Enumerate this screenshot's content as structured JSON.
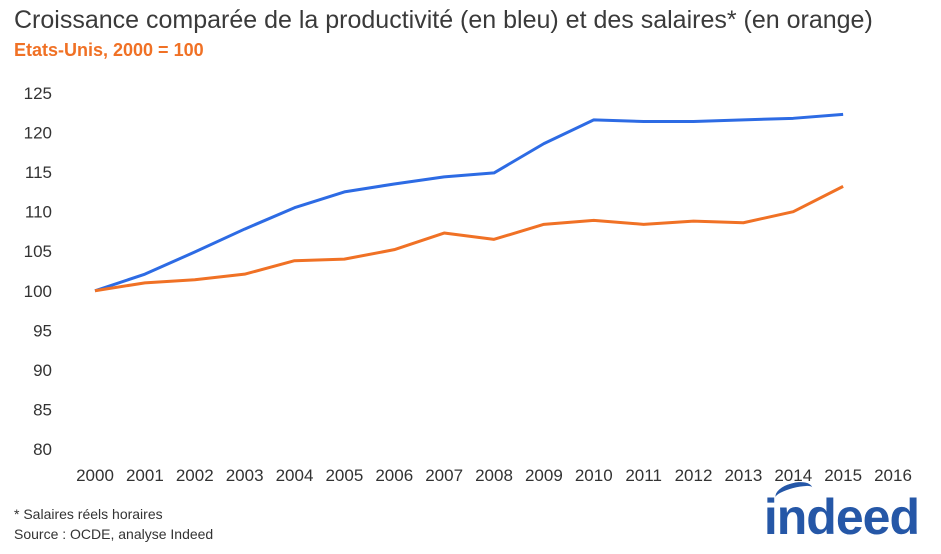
{
  "chart_data": {
    "type": "line",
    "title": "Croissance comparée de la productivité (en bleu) et des salaires* (en orange)",
    "subtitle": "Etats-Unis, 2000 = 100",
    "x": [
      2000,
      2001,
      2002,
      2003,
      2004,
      2005,
      2006,
      2007,
      2008,
      2009,
      2010,
      2011,
      2012,
      2013,
      2014,
      2015
    ],
    "x_ticks": [
      "2000",
      "2001",
      "2002",
      "2003",
      "2004",
      "2005",
      "2006",
      "2007",
      "2008",
      "2009",
      "2010",
      "2011",
      "2012",
      "2013",
      "2014",
      "2015",
      "2016"
    ],
    "y_ticks": [
      "80",
      "85",
      "90",
      "95",
      "100",
      "105",
      "110",
      "115",
      "120",
      "125"
    ],
    "xlim": [
      2000,
      2016
    ],
    "ylim": [
      80,
      125
    ],
    "grid": false,
    "series": [
      {
        "color": "#2d6be4",
        "values": [
          100,
          102.1,
          104.9,
          107.8,
          110.5,
          112.5,
          113.5,
          114.4,
          114.9,
          118.6,
          121.6,
          121.4,
          121.4,
          121.6,
          121.8,
          122.3
        ]
      },
      {
        "color": "#f07125",
        "values": [
          100,
          101.0,
          101.4,
          102.1,
          103.8,
          104.0,
          105.2,
          107.3,
          106.5,
          108.4,
          108.9,
          108.4,
          108.8,
          108.6,
          110.0,
          113.2
        ]
      }
    ]
  },
  "footnote": "* Salaires réels horaires",
  "source": "Source : OCDE, analyse Indeed",
  "logo": "indeed"
}
